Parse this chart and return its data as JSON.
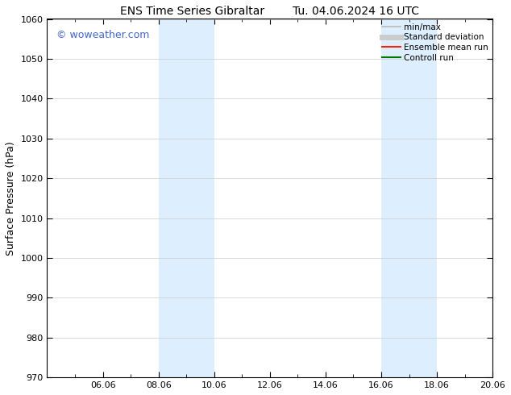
{
  "title_left": "ENS Time Series Gibraltar",
  "title_right": "Tu. 04.06.2024 16 UTC",
  "ylabel": "Surface Pressure (hPa)",
  "ylim": [
    970,
    1060
  ],
  "yticks": [
    970,
    980,
    990,
    1000,
    1010,
    1020,
    1030,
    1040,
    1050,
    1060
  ],
  "xlim": [
    0,
    16
  ],
  "xtick_labels": [
    "06.06",
    "08.06",
    "10.06",
    "12.06",
    "14.06",
    "16.06",
    "18.06",
    "20.06"
  ],
  "xtick_positions": [
    2,
    4,
    6,
    8,
    10,
    12,
    14,
    16
  ],
  "xminor_positions": [
    1,
    3,
    5,
    7,
    9,
    11,
    13,
    15
  ],
  "shaded_bands": [
    {
      "x_start": 4,
      "x_end": 6
    },
    {
      "x_start": 12,
      "x_end": 14
    }
  ],
  "shaded_color": "#ddeeff",
  "background_color": "#ffffff",
  "watermark_text": "© woweather.com",
  "watermark_color": "#4466cc",
  "legend_items": [
    {
      "label": "min/max",
      "color": "#bbbbbb",
      "lw": 1.2,
      "style": "solid"
    },
    {
      "label": "Standard deviation",
      "color": "#cccccc",
      "lw": 5,
      "style": "solid"
    },
    {
      "label": "Ensemble mean run",
      "color": "#ff2200",
      "lw": 1.5,
      "style": "solid"
    },
    {
      "label": "Controll run",
      "color": "#007700",
      "lw": 1.5,
      "style": "solid"
    }
  ],
  "title_fontsize": 10,
  "tick_fontsize": 8,
  "ylabel_fontsize": 9,
  "watermark_fontsize": 9,
  "legend_fontsize": 7.5,
  "grid_color": "#cccccc",
  "border_color": "#000000"
}
